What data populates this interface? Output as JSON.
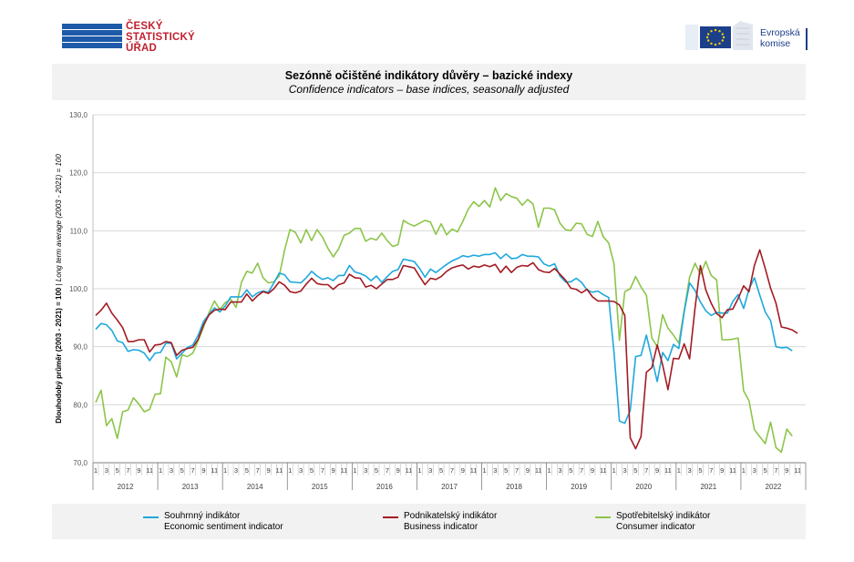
{
  "logos": {
    "csu": {
      "lines": [
        "ČESKÝ",
        "STATISTICKÝ",
        "ÚŘAD"
      ]
    },
    "ec": {
      "lines": [
        "Evropská",
        "komise"
      ]
    }
  },
  "colors": {
    "economic": "#1ea8dc",
    "business": "#a31b23",
    "consumer": "#8cc54a",
    "grid": "#d9d9d9",
    "panel": "#f2f2f2"
  },
  "chart_data": {
    "type": "line",
    "title": "Sezónně očištěné indikátory důvěry – bazické indexy",
    "subtitle": "Confidence indicators – base indices, seasonally adjusted",
    "ylabel": "Dlouhodobý průměr (2003 - 2021) = 100",
    "ylabel_italic": "Long term average (2003 - 2021) = 100",
    "ylim": [
      70,
      130
    ],
    "yticks": [
      "70,0",
      "80,0",
      "90,0",
      "100,0",
      "110,0",
      "120,0",
      "130,0"
    ],
    "grid": true,
    "month_ticks": [
      "1",
      "3",
      "5",
      "7",
      "9",
      "11"
    ],
    "years": [
      "2012",
      "2013",
      "2014",
      "2015",
      "2016",
      "2017",
      "2018",
      "2019",
      "2020",
      "2021",
      "2022"
    ],
    "legend_position": "bottom",
    "series": [
      {
        "key": "economic",
        "name": "Souhrnný indikátor",
        "name_en": "Economic sentiment indicator",
        "values": [
          93.0,
          94.0,
          93.8,
          92.8,
          91.0,
          90.7,
          89.2,
          89.5,
          89.4,
          88.9,
          87.6,
          88.9,
          89.0,
          90.6,
          90.6,
          87.9,
          88.9,
          89.9,
          90.3,
          92.0,
          94.4,
          95.6,
          96.7,
          96.0,
          97.0,
          98.6,
          98.6,
          98.6,
          99.8,
          98.6,
          99.3,
          99.6,
          99.4,
          101.0,
          102.7,
          102.4,
          101.2,
          101.1,
          101.0,
          101.9,
          103.0,
          102.2,
          101.6,
          101.9,
          101.4,
          102.3,
          102.3,
          104.0,
          102.9,
          102.6,
          102.2,
          101.4,
          102.2,
          101.1,
          102.1,
          103.0,
          103.3,
          105.1,
          104.9,
          104.7,
          103.5,
          102.0,
          103.4,
          102.8,
          103.5,
          104.2,
          104.8,
          105.2,
          105.7,
          105.5,
          105.8,
          105.6,
          105.9,
          105.9,
          106.2,
          105.2,
          106.0,
          105.2,
          105.3,
          105.9,
          105.6,
          105.6,
          105.5,
          104.3,
          103.9,
          104.3,
          102.2,
          101.2,
          101.2,
          101.8,
          101.1,
          99.8,
          99.4,
          99.6,
          99.0,
          98.5,
          89.0,
          77.2,
          76.8,
          79.0,
          88.3,
          88.5,
          92.0,
          88.0,
          84.0,
          89.0,
          87.6,
          90.4,
          89.7,
          96.0,
          101.0,
          99.7,
          97.7,
          96.2,
          95.4,
          95.9,
          95.8,
          95.8,
          97.8,
          99.0,
          96.6,
          99.9,
          101.9,
          98.9,
          96.0,
          94.5,
          90.0,
          89.8,
          89.9,
          89.3
        ]
      },
      {
        "key": "business",
        "name": "Podnikatelský indikátor",
        "name_en": "Business indicator",
        "values": [
          95.4,
          96.3,
          97.5,
          95.8,
          94.6,
          93.3,
          90.9,
          90.9,
          91.2,
          91.2,
          89.1,
          90.3,
          90.4,
          90.9,
          90.7,
          88.5,
          89.4,
          89.7,
          89.9,
          91.3,
          93.8,
          95.5,
          96.3,
          96.5,
          96.4,
          97.7,
          97.7,
          97.7,
          99.1,
          97.9,
          98.8,
          99.5,
          99.2,
          100.0,
          101.2,
          100.6,
          99.5,
          99.3,
          99.6,
          100.8,
          101.8,
          100.9,
          100.7,
          100.7,
          99.9,
          100.7,
          101.0,
          102.5,
          101.9,
          101.8,
          100.3,
          100.6,
          100.0,
          100.8,
          101.6,
          101.6,
          102.0,
          104.0,
          103.8,
          103.6,
          102.1,
          100.7,
          101.8,
          101.6,
          102.1,
          103.0,
          103.6,
          103.9,
          104.1,
          103.4,
          103.9,
          103.7,
          104.1,
          103.8,
          104.2,
          102.8,
          103.9,
          102.8,
          103.7,
          104.0,
          103.9,
          104.5,
          103.3,
          102.9,
          102.8,
          103.5,
          102.5,
          101.5,
          100.1,
          99.9,
          99.3,
          99.9,
          98.6,
          97.9,
          97.9,
          97.9,
          97.8,
          97.2,
          95.4,
          74.3,
          72.4,
          74.5,
          85.6,
          86.4,
          90.3,
          86.9,
          82.6,
          88.0,
          87.9,
          90.5,
          87.9,
          96.7,
          104.0,
          99.8,
          97.5,
          95.7,
          95.0,
          96.4,
          96.5,
          98.3,
          100.5,
          99.5,
          104.0,
          106.7,
          103.5,
          100.1,
          97.5,
          93.4,
          93.2,
          92.9,
          92.3
        ]
      },
      {
        "key": "consumer",
        "name": "Spotřebitelský indikátor",
        "name_en": "Consumer indicator",
        "values": [
          80.4,
          82.5,
          76.4,
          77.6,
          74.2,
          78.8,
          79.1,
          81.2,
          80.1,
          78.8,
          79.2,
          81.8,
          81.9,
          88.2,
          87.4,
          84.8,
          88.6,
          88.3,
          88.9,
          91.1,
          93.4,
          95.9,
          97.9,
          96.4,
          97.6,
          98.2,
          96.8,
          101.1,
          103.0,
          102.7,
          104.4,
          101.9,
          101.0,
          101.2,
          102.2,
          106.7,
          110.2,
          109.7,
          107.9,
          110.2,
          108.3,
          110.2,
          108.9,
          107.0,
          105.5,
          106.9,
          109.2,
          109.6,
          110.4,
          110.4,
          108.2,
          108.7,
          108.4,
          109.6,
          108.3,
          107.3,
          107.6,
          111.8,
          111.2,
          110.8,
          111.3,
          111.8,
          111.5,
          109.4,
          111.2,
          109.3,
          110.3,
          109.8,
          111.6,
          113.7,
          115.0,
          114.2,
          115.2,
          114.1,
          117.4,
          115.2,
          116.4,
          115.9,
          115.6,
          114.4,
          115.4,
          114.6,
          110.6,
          113.9,
          113.9,
          113.6,
          111.3,
          110.2,
          110.0,
          111.3,
          111.2,
          109.4,
          109.0,
          111.6,
          109.0,
          107.9,
          104.3,
          91.1,
          99.5,
          100.0,
          102.1,
          100.3,
          98.9,
          91.5,
          90.0,
          95.5,
          93.2,
          92.0,
          90.6,
          96.3,
          102.0,
          104.4,
          102.5,
          104.7,
          102.3,
          101.5,
          91.2,
          91.2,
          91.3,
          91.5,
          82.4,
          80.7,
          75.7,
          74.5,
          73.3,
          77.0,
          72.6,
          71.8,
          75.8,
          74.6
        ]
      }
    ]
  }
}
